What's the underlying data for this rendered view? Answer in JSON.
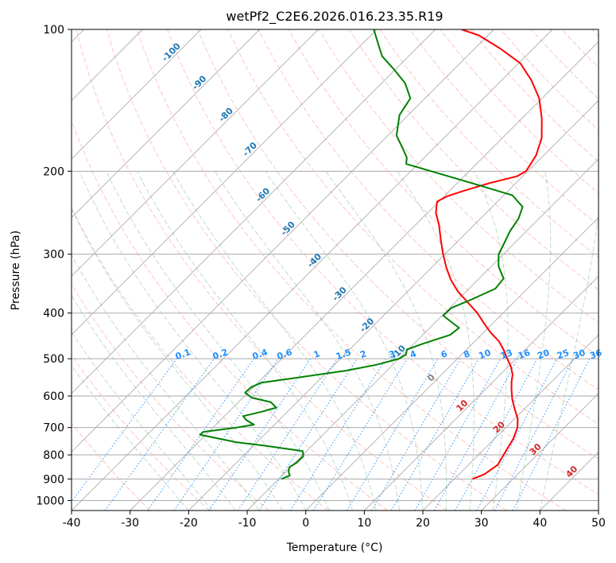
{
  "chart_data": {
    "type": "line",
    "title": "wetPf2_C2E6.2026.016.23.35.R19",
    "xlabel": "Temperature (°C)",
    "ylabel": "Pressure (hPa)",
    "xlim": [
      -40,
      50
    ],
    "ylim": [
      1050,
      100
    ],
    "y_scale": "log",
    "x_ticks": [
      "-40",
      "-30",
      "-20",
      "-10",
      "0",
      "10",
      "20",
      "30",
      "40",
      "50"
    ],
    "y_ticks": [
      "100",
      "200",
      "300",
      "400",
      "500",
      "600",
      "700",
      "800",
      "900",
      "1000"
    ],
    "grid": true,
    "colors": {
      "temperature": "#ff0000",
      "dewpoint": "#008000",
      "isotherm": "#1f77b4",
      "mixing_ratio": "#1e90ff",
      "dry_adiabat": "#fa8072",
      "moist_adiabat": "#2e8b57",
      "zero_label": "#808080",
      "warm_label": "#d62728"
    },
    "isotherm_labels_upper": [
      "-100",
      "-90",
      "-80",
      "-70",
      "-60",
      "-50",
      "-40",
      "-30",
      "-20",
      "-10"
    ],
    "isotherm_label_zero": "0",
    "isotherm_labels_lower": [
      "10",
      "20",
      "30",
      "40"
    ],
    "mixing_ratio_labels": [
      "0.1",
      "0.2",
      "0.4",
      "0.6",
      "1",
      "1.5",
      "2",
      "3",
      "4",
      "6",
      "8",
      "10",
      "13",
      "16",
      "20",
      "25",
      "30",
      "36"
    ],
    "series": [
      {
        "id": "temperature",
        "points": [
          [
            23.1,
            900
          ],
          [
            24.3,
            880
          ],
          [
            25.0,
            840
          ],
          [
            24.3,
            800
          ],
          [
            23.2,
            740
          ],
          [
            22.0,
            700
          ],
          [
            20.5,
            670
          ],
          [
            18.4,
            640
          ],
          [
            16.3,
            610
          ],
          [
            14.4,
            580
          ],
          [
            13.2,
            560
          ],
          [
            12.1,
            540
          ],
          [
            10.5,
            520
          ],
          [
            8.5,
            500
          ],
          [
            6.5,
            480
          ],
          [
            4.2,
            460
          ],
          [
            1.2,
            440
          ],
          [
            -1.6,
            420
          ],
          [
            -4.4,
            400
          ],
          [
            -7.8,
            380
          ],
          [
            -11.4,
            360
          ],
          [
            -14.6,
            340
          ],
          [
            -17.5,
            320
          ],
          [
            -20.3,
            300
          ],
          [
            -23.1,
            280
          ],
          [
            -26.0,
            260
          ],
          [
            -28.6,
            245
          ],
          [
            -30.3,
            232
          ],
          [
            -29.5,
            226
          ],
          [
            -27.6,
            220
          ],
          [
            -24.5,
            212
          ],
          [
            -21.0,
            205
          ],
          [
            -20.3,
            200
          ],
          [
            -21.3,
            185
          ],
          [
            -23.3,
            170
          ],
          [
            -26.5,
            155
          ],
          [
            -30.5,
            140
          ],
          [
            -35.0,
            128
          ],
          [
            -39.7,
            118
          ],
          [
            -45.5,
            110
          ],
          [
            -51.5,
            103
          ],
          [
            -55.5,
            100
          ]
        ]
      },
      {
        "id": "dewpoint",
        "points": [
          [
            -9.5,
            900
          ],
          [
            -8.7,
            885
          ],
          [
            -9.5,
            870
          ],
          [
            -10.2,
            850
          ],
          [
            -9.7,
            830
          ],
          [
            -9.7,
            805
          ],
          [
            -10.7,
            785
          ],
          [
            -18.0,
            765
          ],
          [
            -23.5,
            752
          ],
          [
            -31.0,
            725
          ],
          [
            -30.9,
            715
          ],
          [
            -26.0,
            700
          ],
          [
            -23.5,
            690
          ],
          [
            -25.6,
            675
          ],
          [
            -26.8,
            662
          ],
          [
            -24.4,
            648
          ],
          [
            -22.6,
            635
          ],
          [
            -24.5,
            618
          ],
          [
            -28.5,
            605
          ],
          [
            -30.5,
            590
          ],
          [
            -30.4,
            575
          ],
          [
            -29.4,
            562
          ],
          [
            -24.0,
            548
          ],
          [
            -17.0,
            530
          ],
          [
            -12.8,
            515
          ],
          [
            -10.0,
            500
          ],
          [
            -9.5,
            490
          ],
          [
            -10.2,
            478
          ],
          [
            -8.5,
            465
          ],
          [
            -5.3,
            445
          ],
          [
            -5.0,
            430
          ],
          [
            -7.3,
            418
          ],
          [
            -9.8,
            405
          ],
          [
            -9.7,
            390
          ],
          [
            -7.8,
            375
          ],
          [
            -5.5,
            355
          ],
          [
            -5.8,
            338
          ],
          [
            -8.8,
            318
          ],
          [
            -10.8,
            300
          ],
          [
            -11.7,
            285
          ],
          [
            -12.8,
            268
          ],
          [
            -13.5,
            252
          ],
          [
            -14.8,
            238
          ],
          [
            -18.5,
            225
          ],
          [
            -27.5,
            212
          ],
          [
            -36.5,
            200
          ],
          [
            -42.0,
            193
          ],
          [
            -43.0,
            187
          ],
          [
            -45.5,
            178
          ],
          [
            -48.5,
            168
          ],
          [
            -51.5,
            152
          ],
          [
            -52.5,
            140
          ],
          [
            -56.0,
            130
          ],
          [
            -60.0,
            122
          ],
          [
            -64.5,
            114
          ],
          [
            -67.0,
            108
          ],
          [
            -70.5,
            100
          ]
        ]
      }
    ]
  }
}
